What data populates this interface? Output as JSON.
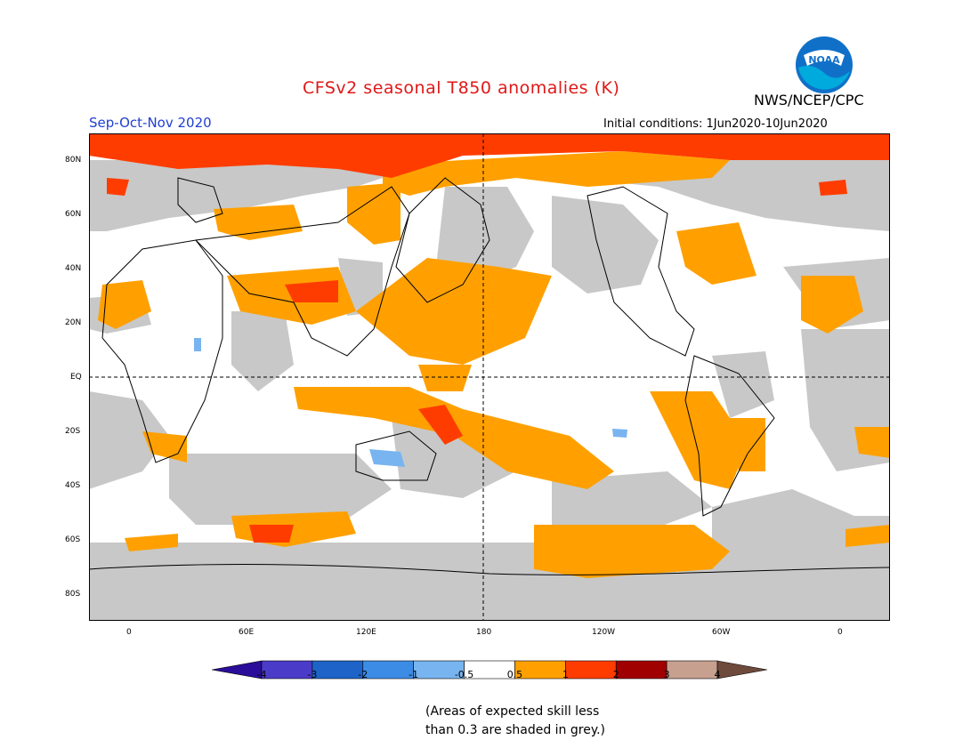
{
  "title": "CFSv2 seasonal T850 anomalies (K)",
  "season": "Sep-Oct-Nov 2020",
  "initial_conditions": "Initial conditions: 1Jun2020-10Jun2020",
  "agency": "NWS/NCEP/CPC",
  "logo_text": "NOAA",
  "lat_labels": [
    "80N",
    "60N",
    "40N",
    "20N",
    "EQ",
    "20S",
    "40S",
    "60S",
    "80S"
  ],
  "lon_labels": [
    "0",
    "60E",
    "120E",
    "180",
    "120W",
    "60W",
    "0"
  ],
  "colorbar": {
    "labels": [
      "-4",
      "-3",
      "-2",
      "-1",
      "-0.5",
      "0.5",
      "1",
      "2",
      "3",
      "4"
    ],
    "colors": [
      "#2a0e99",
      "#4a3cc8",
      "#1e64c8",
      "#3c8ce6",
      "#78b4f0",
      "#ffffff",
      "#ffa000",
      "#ff3c00",
      "#a00000",
      "#c8a090",
      "#6e4a3c"
    ]
  },
  "colors": {
    "skill_grey": "#c8c8c8",
    "anom_05_1": "#ffa000",
    "anom_1_2": "#ff3c00",
    "anom_neg": "#78b4f0"
  },
  "note_line1": "(Areas of expected skill less",
  "note_line2": "than 0.3 are shaded in grey.)"
}
